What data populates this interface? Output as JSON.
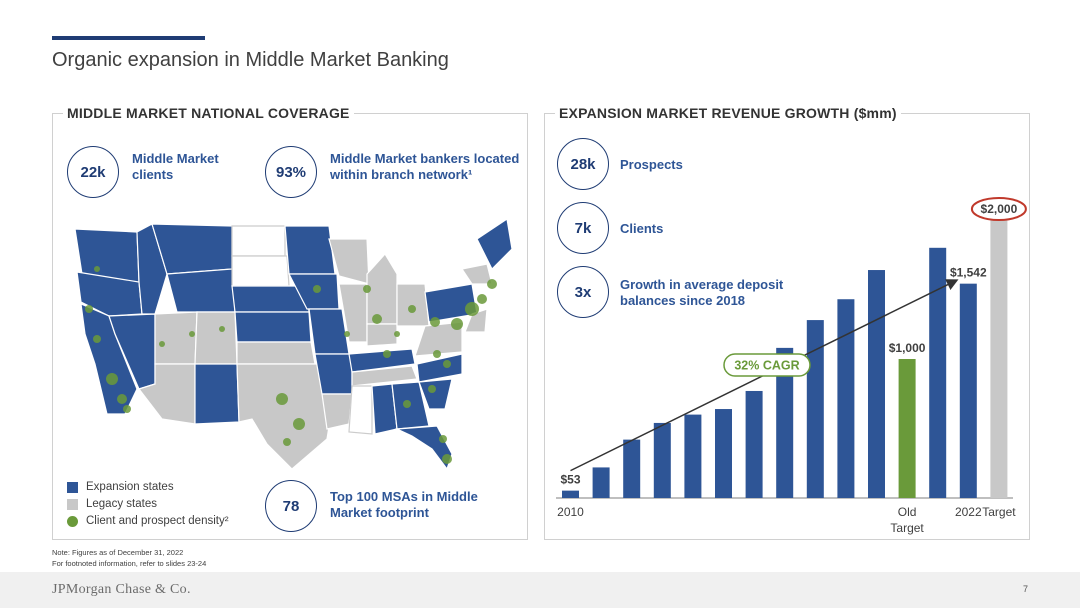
{
  "slide": {
    "title": "Organic expansion in Middle Market Banking",
    "page_number": "7",
    "logo": "JPMorgan Chase & Co.",
    "note_line1": "Note: Figures as of December 31, 2022",
    "note_line2": "For footnoted information, refer to slides 23-24"
  },
  "left_panel": {
    "title": "MIDDLE MARKET NATIONAL COVERAGE",
    "stats": [
      {
        "value": "22k",
        "label": "Middle Market clients"
      },
      {
        "value": "93%",
        "label": "Middle Market bankers located within branch network¹"
      },
      {
        "value": "78",
        "label": "Top 100 MSAs in Middle Market footprint"
      }
    ],
    "legend": [
      {
        "label": "Expansion states",
        "color": "#2e5596"
      },
      {
        "label": "Legacy states",
        "color": "#c8c8c8"
      },
      {
        "label": "Client and prospect density²",
        "color": "#6a9a3a"
      }
    ]
  },
  "right_panel": {
    "title": "EXPANSION MARKET REVENUE GROWTH ($mm)",
    "stats": [
      {
        "value": "28k",
        "label": "Prospects"
      },
      {
        "value": "7k",
        "label": "Clients"
      },
      {
        "value": "3x",
        "label": "Growth in average deposit balances since 2018"
      }
    ]
  },
  "colors": {
    "navy": "#1f3c74",
    "blue": "#2e5596",
    "green": "#6a9a3a",
    "gray": "#c8c8c8",
    "red": "#c0392b"
  },
  "chart_data": {
    "type": "bar",
    "title": "EXPANSION MARKET REVENUE GROWTH ($mm)",
    "categories": [
      "2010",
      "",
      "",
      "",
      "",
      "",
      "",
      "",
      "",
      "",
      "",
      "Old Target",
      "",
      "2022",
      "Target"
    ],
    "values": [
      53,
      220,
      420,
      540,
      600,
      640,
      770,
      1080,
      1280,
      1430,
      1640,
      1000,
      1800,
      1542,
      2000
    ],
    "bar_colors": [
      "blue",
      "blue",
      "blue",
      "blue",
      "blue",
      "blue",
      "blue",
      "blue",
      "blue",
      "blue",
      "blue",
      "green",
      "blue",
      "blue",
      "gray"
    ],
    "data_labels": {
      "0": "$53",
      "11": "$1,000",
      "13": "$1,542",
      "14": "$2,000"
    },
    "annotation": "32% CAGR",
    "ylim": [
      0,
      2000
    ],
    "grid": false,
    "legend": "none"
  }
}
